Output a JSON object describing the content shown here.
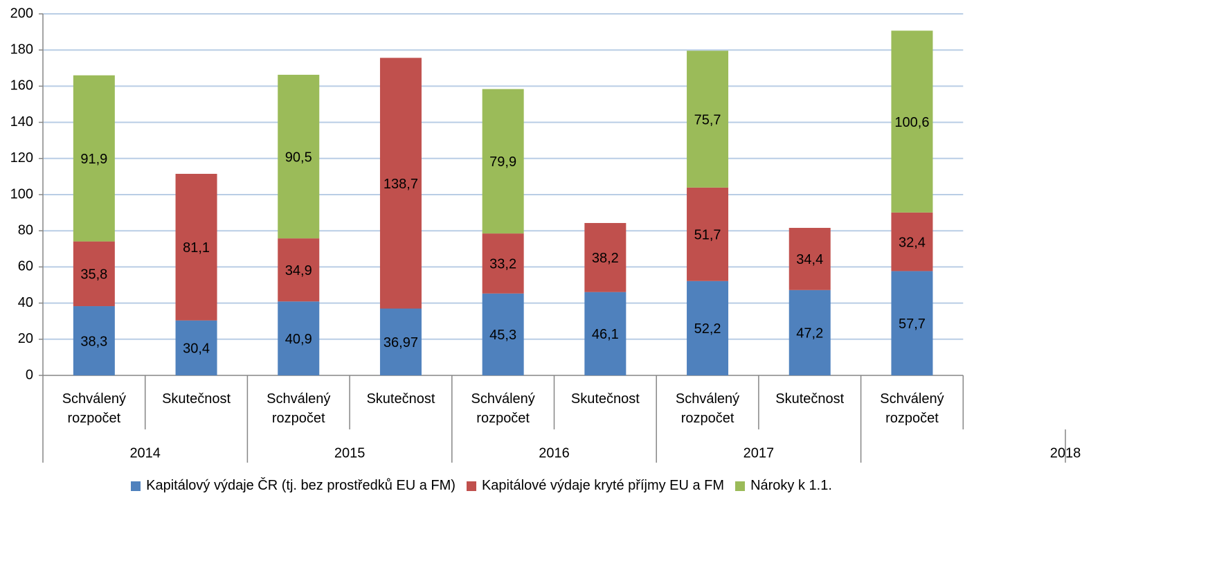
{
  "chart_data": {
    "type": "stacked_bar",
    "categories": [
      "Schválený rozpočet",
      "Skutečnost",
      "Schválený rozpočet",
      "Skutečnost",
      "Schválený rozpočet",
      "Skutečnost",
      "Schválený rozpočet",
      "Skutečnost",
      "Schválený rozpočet"
    ],
    "groups": [
      "2014",
      "2015",
      "2016",
      "2017",
      "2018"
    ],
    "series": [
      {
        "name": "Kapitálový výdaje ČR (tj. bez prostředků EU a FM)",
        "color": "#4f81bd",
        "values": [
          38.3,
          30.4,
          40.9,
          36.97,
          45.3,
          46.1,
          52.2,
          47.2,
          57.7
        ],
        "value_labels": [
          "38,3",
          "30,4",
          "40,9",
          "36,97",
          "45,3",
          "46,1",
          "52,2",
          "47,2",
          "57,7"
        ]
      },
      {
        "name": "Kapitálové výdaje kryté příjmy EU a FM",
        "color": "#c0504d",
        "values": [
          35.8,
          81.1,
          34.9,
          138.7,
          33.2,
          38.2,
          51.7,
          34.4,
          32.4
        ],
        "value_labels": [
          "35,8",
          "81,1",
          "34,9",
          "138,7",
          "33,2",
          "38,2",
          "51,7",
          "34,4",
          "32,4"
        ]
      },
      {
        "name": "Nároky k 1.1.",
        "color": "#9bbb59",
        "values": [
          91.9,
          null,
          90.5,
          null,
          79.9,
          null,
          75.7,
          null,
          100.6
        ],
        "value_labels": [
          "91,9",
          null,
          "90,5",
          null,
          "79,9",
          null,
          "75,7",
          null,
          "100,6"
        ]
      }
    ],
    "ylim": [
      0,
      200
    ],
    "yticks": [
      0,
      20,
      40,
      60,
      80,
      100,
      120,
      140,
      160,
      180,
      200
    ],
    "grid": true,
    "legend": "bottom"
  }
}
